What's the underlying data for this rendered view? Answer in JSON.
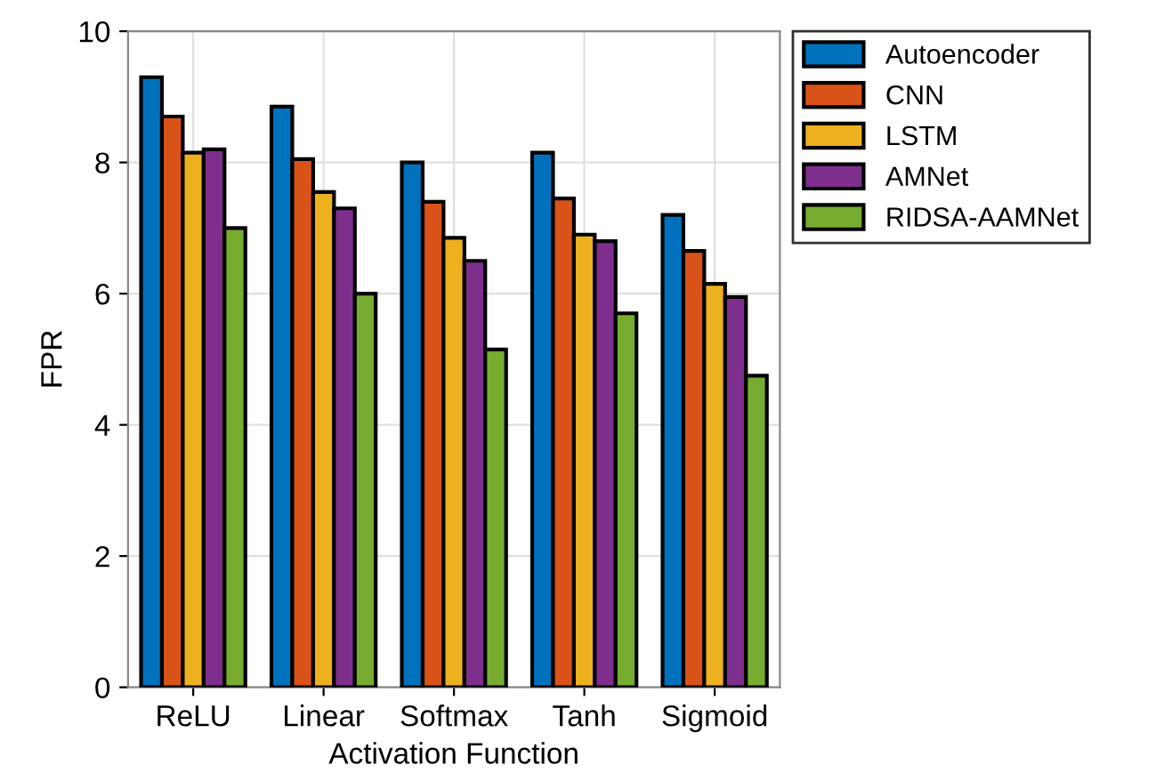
{
  "chart_data": {
    "type": "bar",
    "xlabel": "Activation Function",
    "ylabel": "FPR",
    "categories": [
      "ReLU",
      "Linear",
      "Softmax",
      "Tanh",
      "Sigmoid"
    ],
    "series": [
      {
        "name": "Autoencoder",
        "color": "#0072bd",
        "values": [
          9.3,
          8.85,
          8.0,
          8.15,
          7.2
        ]
      },
      {
        "name": "CNN",
        "color": "#d95319",
        "values": [
          8.7,
          8.05,
          7.4,
          7.45,
          6.65
        ]
      },
      {
        "name": "LSTM",
        "color": "#edb120",
        "values": [
          8.15,
          7.55,
          6.85,
          6.9,
          6.15
        ]
      },
      {
        "name": "AMNet",
        "color": "#7e2f8e",
        "values": [
          8.2,
          7.3,
          6.5,
          6.8,
          5.95
        ]
      },
      {
        "name": "RIDSA-AAMNet",
        "color": "#77ac30",
        "values": [
          7.0,
          6.0,
          5.15,
          5.7,
          4.75
        ]
      }
    ],
    "ylim": [
      0,
      10
    ],
    "yticks": [
      0,
      2,
      4,
      6,
      8,
      10
    ],
    "grid": true,
    "legend": "top right"
  }
}
